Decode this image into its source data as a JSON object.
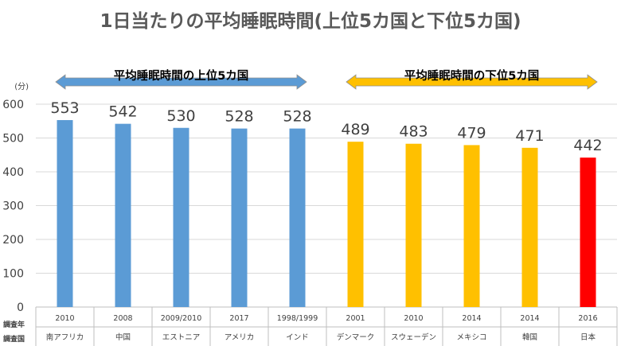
{
  "chart_data": {
    "type": "bar",
    "title": "1日当たりの平均睡眠時間(上位5カ国と下位5カ国)",
    "y_unit": "(分)",
    "ylim": [
      0,
      600
    ],
    "yticks": [
      0,
      100,
      200,
      300,
      400,
      500,
      600
    ],
    "grid": true,
    "categories": [
      "南アフリカ",
      "中国",
      "エストニア",
      "アメリカ",
      "インド",
      "デンマーク",
      "スウェーデン",
      "メキシコ",
      "韓国",
      "日本"
    ],
    "survey_years": [
      "2010",
      "2008",
      "2009/2010",
      "2017",
      "1998/1999",
      "2001",
      "2010",
      "2014",
      "2014",
      "2016"
    ],
    "values": [
      553,
      542,
      530,
      528,
      528,
      489,
      483,
      479,
      471,
      442
    ],
    "bar_colors": [
      "#5b9bd5",
      "#5b9bd5",
      "#5b9bd5",
      "#5b9bd5",
      "#5b9bd5",
      "#ffc000",
      "#ffc000",
      "#ffc000",
      "#ffc000",
      "#ff0000"
    ],
    "row_headers": {
      "year": "調査年",
      "country": "調査国"
    },
    "bands": [
      {
        "label": "平均睡眠時間の上位5カ国",
        "from": 0,
        "to": 4,
        "color": "#5b9bd5"
      },
      {
        "label": "平均睡眠時間の下位5カ国",
        "from": 5,
        "to": 9,
        "color": "#ffc000"
      }
    ]
  }
}
